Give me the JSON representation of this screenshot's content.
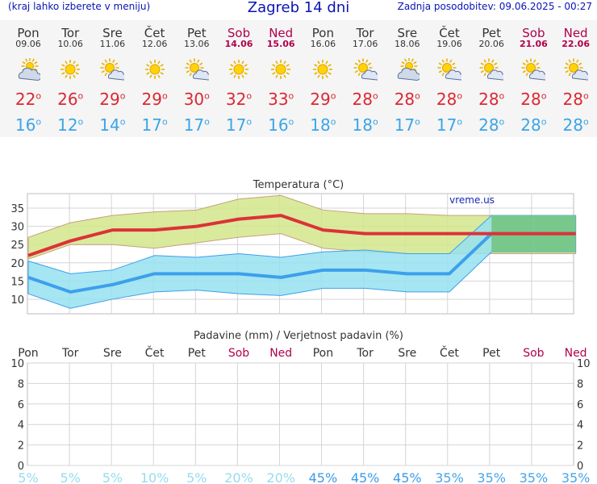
{
  "header": {
    "menu_hint": "(kraj lahko izberete v meniju)",
    "title": "Zagreb 14 dni",
    "updated": "Zadnja posodobitev: 09.06.2025 - 00:27"
  },
  "days": [
    {
      "name": "Pon",
      "date": "09.06",
      "weekend": false,
      "icon": "partly-cloudy-icon",
      "tmax": "22",
      "tmin": "16"
    },
    {
      "name": "Tor",
      "date": "10.06",
      "weekend": false,
      "icon": "sunny-icon",
      "tmax": "26",
      "tmin": "12"
    },
    {
      "name": "Sre",
      "date": "11.06",
      "weekend": false,
      "icon": "sun-cloud-icon",
      "tmax": "29",
      "tmin": "14"
    },
    {
      "name": "Čet",
      "date": "12.06",
      "weekend": false,
      "icon": "sunny-icon",
      "tmax": "29",
      "tmin": "17"
    },
    {
      "name": "Pet",
      "date": "13.06",
      "weekend": false,
      "icon": "sun-cloud-icon",
      "tmax": "30",
      "tmin": "17"
    },
    {
      "name": "Sob",
      "date": "14.06",
      "weekend": true,
      "icon": "sunny-icon",
      "tmax": "32",
      "tmin": "17"
    },
    {
      "name": "Ned",
      "date": "15.06",
      "weekend": true,
      "icon": "sunny-icon",
      "tmax": "33",
      "tmin": "16"
    },
    {
      "name": "Pon",
      "date": "16.06",
      "weekend": false,
      "icon": "sunny-icon",
      "tmax": "29",
      "tmin": "18"
    },
    {
      "name": "Tor",
      "date": "17.06",
      "weekend": false,
      "icon": "sun-cloud-icon",
      "tmax": "28",
      "tmin": "18"
    },
    {
      "name": "Sre",
      "date": "18.06",
      "weekend": false,
      "icon": "partly-cloudy-icon",
      "tmax": "28",
      "tmin": "17"
    },
    {
      "name": "Čet",
      "date": "19.06",
      "weekend": false,
      "icon": "sun-cloud-icon",
      "tmax": "28",
      "tmin": "17"
    },
    {
      "name": "Pet",
      "date": "20.06",
      "weekend": false,
      "icon": "sun-cloud-icon",
      "tmax": "28",
      "tmin": "28"
    },
    {
      "name": "Sob",
      "date": "21.06",
      "weekend": true,
      "icon": "sun-cloud-icon",
      "tmax": "28",
      "tmin": "28"
    },
    {
      "name": "Ned",
      "date": "22.06",
      "weekend": true,
      "icon": "sun-cloud-icon",
      "tmax": "28",
      "tmin": "28"
    }
  ],
  "degree_symbol": "o",
  "colors": {
    "max_line": "#dc3238",
    "max_band": "#d2e68c",
    "min_line": "#3ca0eb",
    "min_band": "#96e1f0",
    "overlap_band": "#78c88c",
    "weekend_text": "#b0004c",
    "prob_low": "#96dcf0",
    "prob_mid": "#3c9be6"
  },
  "chart_data": [
    {
      "type": "area",
      "title": "Temperatura (°C)",
      "watermark": "vreme.us",
      "categories": [
        "Pon",
        "Tor",
        "Sre",
        "Čet",
        "Pet",
        "Sob",
        "Ned",
        "Pon",
        "Tor",
        "Sre",
        "Čet",
        "Pet",
        "Sob",
        "Ned"
      ],
      "yticks": [
        10,
        15,
        20,
        25,
        30,
        35
      ],
      "ylim": [
        6,
        39
      ],
      "grid": true,
      "series": [
        {
          "name": "max",
          "values": [
            22,
            26,
            29,
            29,
            30,
            32,
            33,
            29,
            28,
            28,
            28,
            28,
            28,
            28
          ],
          "band_low": [
            21,
            25,
            25,
            24,
            25.5,
            27,
            28,
            24,
            23,
            22.5,
            22.5,
            22.5,
            22.5,
            22.5
          ],
          "band_high": [
            27,
            31,
            33,
            34,
            34.5,
            37.5,
            38.5,
            34.5,
            33.5,
            33.5,
            33,
            33,
            33,
            33
          ]
        },
        {
          "name": "min",
          "values": [
            16,
            12,
            14,
            17,
            17,
            17,
            16,
            18,
            18,
            17,
            17,
            28,
            28,
            28
          ],
          "band_low": [
            11.5,
            7.5,
            10,
            12,
            12.5,
            11.5,
            11,
            13,
            13,
            12,
            12,
            23,
            23,
            23
          ],
          "band_high": [
            20.5,
            17,
            18,
            22,
            21.5,
            22.5,
            21.5,
            23,
            23.5,
            22.5,
            22.5,
            33,
            33,
            33
          ]
        }
      ]
    },
    {
      "type": "bar",
      "title": "Padavine (mm) / Verjetnost padavin (%)",
      "categories": [
        "Pon",
        "Tor",
        "Sre",
        "Čet",
        "Pet",
        "Sob",
        "Ned",
        "Pon",
        "Tor",
        "Sre",
        "Čet",
        "Pet",
        "Sob",
        "Ned"
      ],
      "weekend": [
        false,
        false,
        false,
        false,
        false,
        true,
        true,
        false,
        false,
        false,
        false,
        false,
        true,
        true
      ],
      "yticks": [
        0,
        2,
        4,
        6,
        8,
        10
      ],
      "ylim": [
        0,
        10
      ],
      "values": [
        0,
        0,
        0,
        0,
        0,
        0,
        0,
        0,
        0,
        0,
        0,
        0,
        0,
        0
      ],
      "probability": [
        "5%",
        "5%",
        "5%",
        "10%",
        "5%",
        "20%",
        "20%",
        "45%",
        "45%",
        "45%",
        "35%",
        "35%",
        "35%",
        "35%"
      ],
      "probability_values": [
        5,
        5,
        5,
        10,
        5,
        20,
        20,
        45,
        45,
        45,
        35,
        35,
        35,
        35
      ],
      "grid": true
    }
  ]
}
